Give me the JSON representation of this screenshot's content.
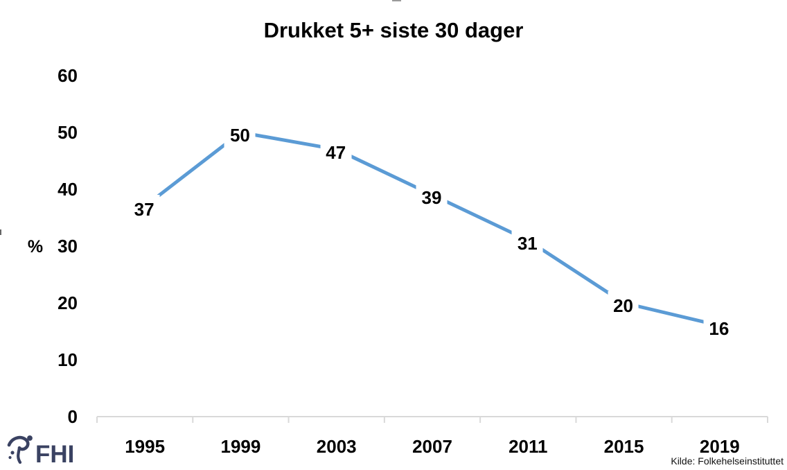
{
  "chart_data": {
    "type": "line",
    "title": "Drukket 5+ siste 30 dager",
    "categories": [
      "1995",
      "1999",
      "2003",
      "2007",
      "2011",
      "2015",
      "2019"
    ],
    "values": [
      37,
      50,
      47,
      39,
      31,
      20,
      16
    ],
    "xlabel": "",
    "ylabel": "%",
    "ylim": [
      0,
      60
    ],
    "yticks": [
      0,
      10,
      20,
      30,
      40,
      50,
      60
    ],
    "grid": false,
    "legend": "none",
    "data_labels": true,
    "line_color": "#5B9BD5"
  },
  "footer": {
    "logo_text": "FHI",
    "source": "Kilde: Folkehelseinstituttet"
  },
  "colors": {
    "line": "#5B9BD5",
    "axis": "#D9D9D9",
    "text": "#000000",
    "logo": "#3A4262"
  }
}
